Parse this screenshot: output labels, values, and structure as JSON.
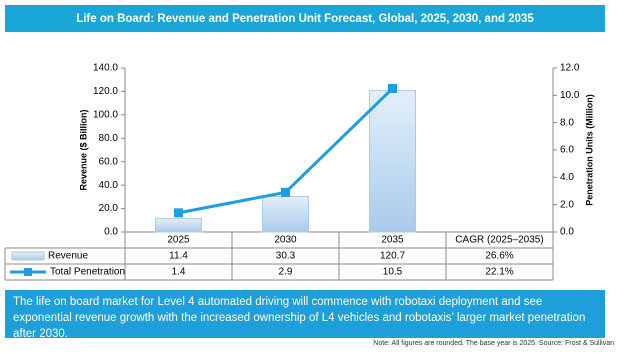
{
  "chart_data": {
    "type": "bar-line",
    "title": "Life on Board: Revenue and Penetration Unit Forecast, Global, 2025, 2030, and 2035",
    "ylabel": "Revenue ($ Billion)",
    "y2label": "Penetration Units (Million)",
    "categories": [
      "2025",
      "2030",
      "2035"
    ],
    "cagr_header": "CAGR (2025–2035)",
    "series": [
      {
        "name": "Revenue",
        "type": "bar",
        "color": "#a9cbea",
        "values": [
          11.4,
          30.3,
          120.7
        ],
        "cagr": {
          "value": 26.6,
          "label": "26.6%"
        }
      },
      {
        "name": "Total Penetration",
        "type": "line",
        "axis": "y2",
        "color": "#1e9ee0",
        "values": [
          1.4,
          2.9,
          10.5
        ],
        "cagr": {
          "value": 22.1,
          "label": "22.1%"
        }
      }
    ],
    "ylim": [
      0,
      140
    ],
    "yticks": [
      {
        "value": 0,
        "label": "0.0"
      },
      {
        "value": 20,
        "label": "20.0"
      },
      {
        "value": 40,
        "label": "40.0"
      },
      {
        "value": 60,
        "label": "60.0"
      },
      {
        "value": 80,
        "label": "80.0"
      },
      {
        "value": 100,
        "label": "100.0"
      },
      {
        "value": 120,
        "label": "120.0"
      },
      {
        "value": 140,
        "label": "140.0"
      }
    ],
    "y2lim": [
      0,
      12
    ],
    "y2ticks": [
      {
        "value": 0,
        "label": "0.0"
      },
      {
        "value": 2,
        "label": "2.0"
      },
      {
        "value": 4,
        "label": "4.0"
      },
      {
        "value": 6,
        "label": "6.0"
      },
      {
        "value": 8,
        "label": "8.0"
      },
      {
        "value": 10,
        "label": "10.0"
      },
      {
        "value": 12,
        "label": "12.0"
      }
    ],
    "description": "The life on board market for Level 4 automated driving will commence with robotaxi deployment and see exponential revenue growth with the increased ownership of L4 vehicles and robotaxis’ larger market penetration after 2030.",
    "note": "Note: All figures are rounded. The base year is 2025. Source: Frost & Sullivan"
  }
}
